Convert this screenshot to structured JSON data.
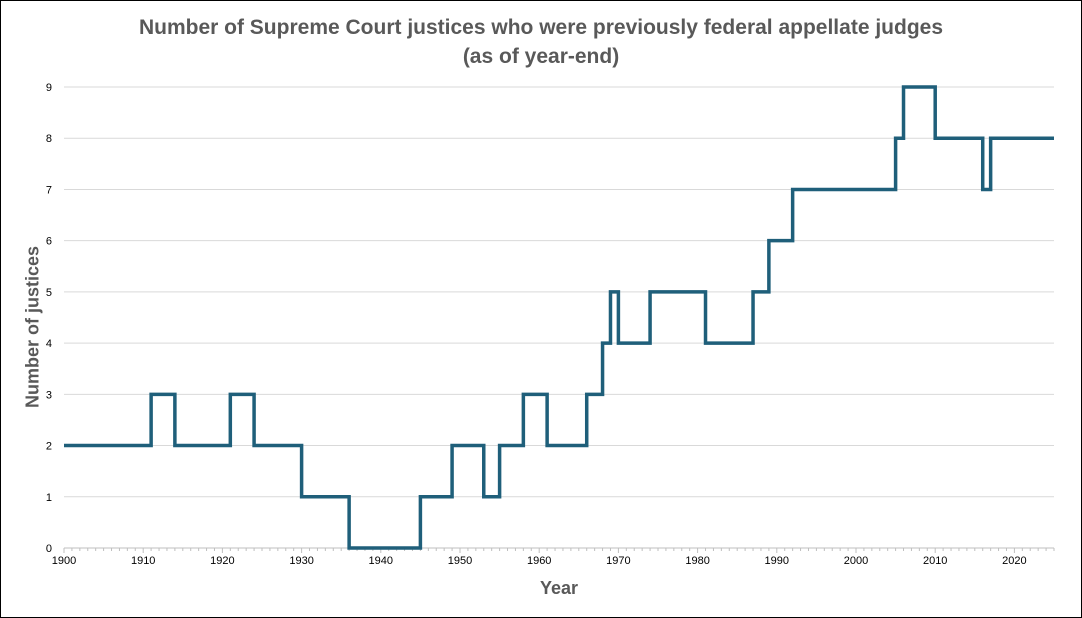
{
  "chart_data": {
    "type": "line",
    "step": true,
    "title": "Number of Supreme Court justices who were previously federal appellate judges",
    "subtitle": "(as of year-end)",
    "xlabel": "Year",
    "ylabel": "Number of justices",
    "xlim": [
      1900,
      2025
    ],
    "ylim": [
      0,
      9
    ],
    "x_ticks": [
      1900,
      1910,
      1920,
      1930,
      1940,
      1950,
      1960,
      1970,
      1980,
      1990,
      2000,
      2010,
      2020
    ],
    "y_ticks": [
      0,
      1,
      2,
      3,
      4,
      5,
      6,
      7,
      8,
      9
    ],
    "grid": "horizontal",
    "line_color": "#1f5f7a",
    "series": [
      {
        "x": [
          1900,
          1911,
          1914,
          1921,
          1924,
          1930,
          1936,
          1945,
          1949,
          1953,
          1955,
          1958,
          1961,
          1966,
          1968,
          1969,
          1970,
          1974,
          1981,
          1987,
          1989,
          1992,
          2005,
          2006,
          2010,
          2016,
          2017,
          2025
        ],
        "y": [
          2,
          3,
          2,
          3,
          2,
          1,
          0,
          1,
          2,
          1,
          2,
          3,
          2,
          3,
          4,
          5,
          4,
          5,
          4,
          5,
          6,
          7,
          8,
          9,
          8,
          7,
          8,
          8
        ]
      }
    ]
  }
}
